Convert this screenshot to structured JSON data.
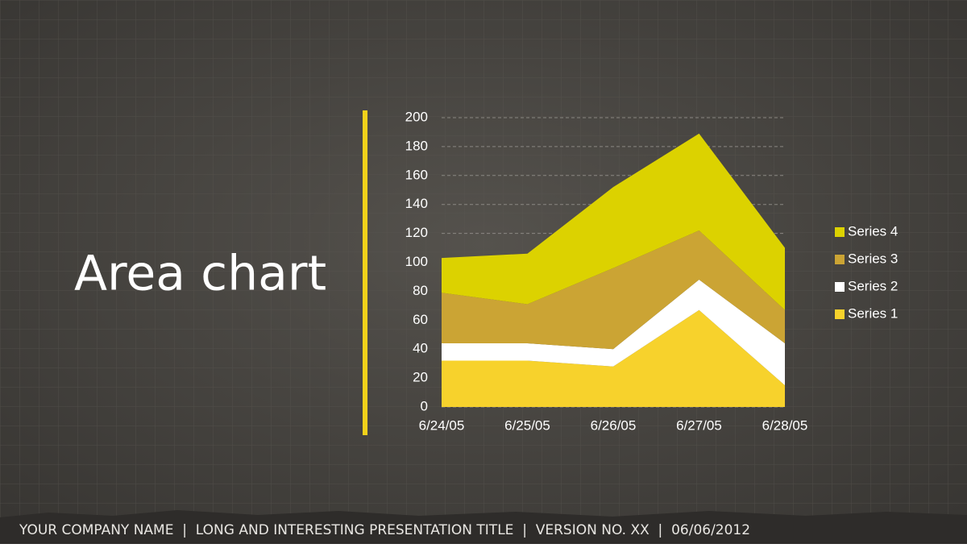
{
  "slide_title": "Area chart",
  "footer": "YOUR COMPANY NAME  |  LONG AND INTERESTING PRESENTATION TITLE  |  VERSION NO. XX  |  06/06/2012",
  "chart_data": {
    "type": "area",
    "stacked": true,
    "grid": true,
    "legend": "right",
    "categories": [
      "6/24/05",
      "6/25/05",
      "6/26/05",
      "6/27/05",
      "6/28/05"
    ],
    "ylim": [
      0,
      200
    ],
    "yticks": [
      0,
      20,
      40,
      60,
      80,
      100,
      120,
      140,
      160,
      180,
      200
    ],
    "series": [
      {
        "name": "Series 1",
        "color": "#f7d22c",
        "values": [
          32,
          32,
          28,
          67,
          15
        ]
      },
      {
        "name": "Series 2",
        "color": "#ffffff",
        "values": [
          12,
          12,
          12,
          21,
          29
        ]
      },
      {
        "name": "Series 3",
        "color": "#cba434",
        "values": [
          35,
          27,
          56,
          34,
          23
        ]
      },
      {
        "name": "Series 4",
        "color": "#dcd200",
        "values": [
          24,
          35,
          56,
          67,
          43
        ]
      }
    ]
  }
}
